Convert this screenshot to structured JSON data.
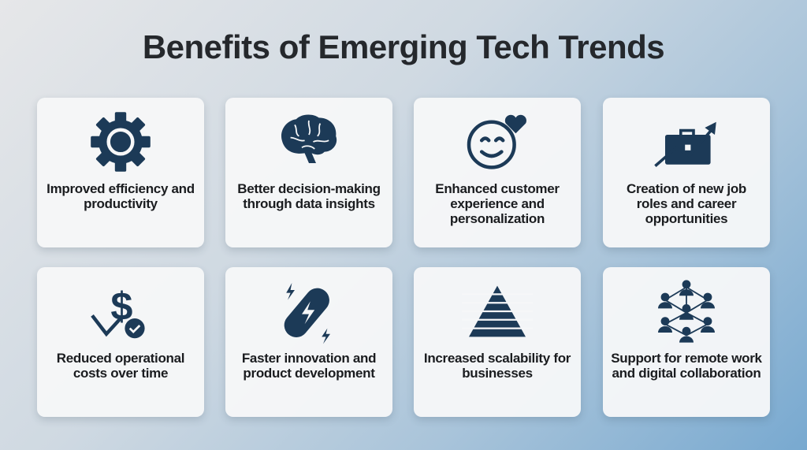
{
  "title": "Benefits of Emerging Tech Trends",
  "icon_color": "#1c3a57",
  "cards": [
    {
      "icon": "gear-icon",
      "label": "Improved efficiency and productivity"
    },
    {
      "icon": "brain-icon",
      "label": "Better decision-making through data insights"
    },
    {
      "icon": "smiley-heart-icon",
      "label": "Enhanced customer experience and personalization"
    },
    {
      "icon": "briefcase-growth-icon",
      "label": "Creation of new job roles and career opportunities"
    },
    {
      "icon": "dollar-down-check-icon",
      "label": "Reduced operational costs over time"
    },
    {
      "icon": "lightning-capsule-icon",
      "label": "Faster innovation and product development"
    },
    {
      "icon": "pyramid-icon",
      "label": "Increased scalability for businesses"
    },
    {
      "icon": "network-people-icon",
      "label": "Support for remote work and digital collaboration"
    }
  ]
}
